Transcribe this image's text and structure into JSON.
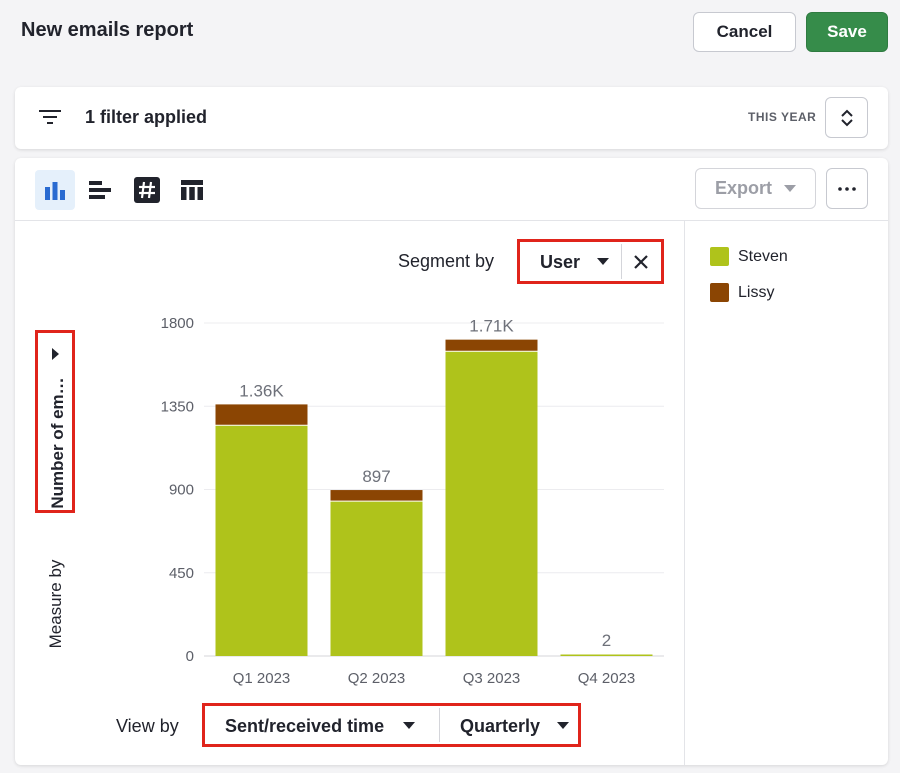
{
  "header": {
    "title": "New emails report",
    "cancel_label": "Cancel",
    "save_label": "Save"
  },
  "filters": {
    "summary": "1 filter applied",
    "period": "THIS YEAR"
  },
  "toolbar": {
    "view_types": [
      "bar-chart-icon",
      "horizontal-bar-chart-icon",
      "number-icon",
      "table-icon"
    ],
    "active_view": "bar-chart-icon",
    "export_label": "Export",
    "more_label": "···"
  },
  "segment": {
    "label": "Segment by",
    "value": "User"
  },
  "measure": {
    "label": "Measure by",
    "value": "Number of em…"
  },
  "view_by": {
    "label": "View by",
    "field": "Sent/received time",
    "interval": "Quarterly"
  },
  "colors": {
    "steven": "#afc31b",
    "lissy": "#8b4503",
    "accent": "#e0241b",
    "save": "#368c4a"
  },
  "chart_data": {
    "type": "bar",
    "stacked": true,
    "categories": [
      "Q1 2023",
      "Q2 2023",
      "Q3 2023",
      "Q4 2023"
    ],
    "series": [
      {
        "name": "Steven",
        "values": [
          1250,
          840,
          1650,
          2
        ]
      },
      {
        "name": "Lissy",
        "values": [
          110,
          57,
          60,
          0
        ]
      }
    ],
    "totals": [
      "1.36K",
      "897",
      "1.71K",
      "2"
    ],
    "y_ticks": [
      "0",
      "450",
      "900",
      "1350",
      "1800"
    ],
    "ylim": [
      0,
      1800
    ],
    "grid": true,
    "legend": "right"
  }
}
